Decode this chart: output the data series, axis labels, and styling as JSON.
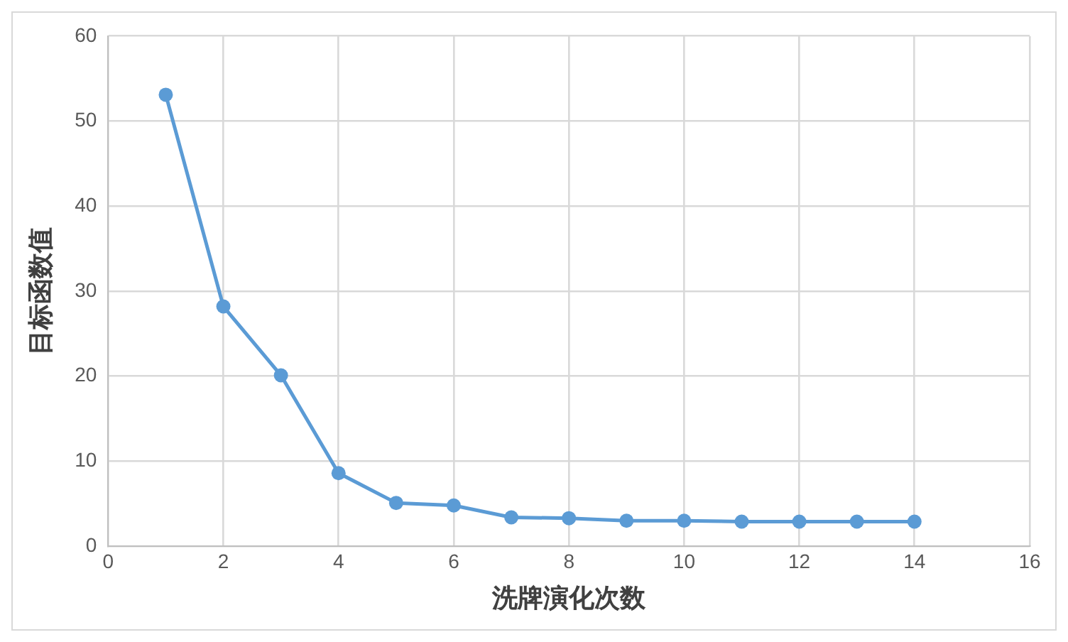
{
  "chart_data": {
    "type": "line",
    "xlabel": "洗牌演化次数",
    "ylabel": "目标函数值",
    "x": [
      1,
      2,
      3,
      4,
      5,
      6,
      7,
      8,
      9,
      10,
      11,
      12,
      13,
      14
    ],
    "series": [
      {
        "color": "#5b9bd5",
        "values": [
          53.1,
          28.2,
          20.1,
          8.6,
          5.1,
          4.8,
          3.4,
          3.3,
          3.0,
          3.0,
          2.9,
          2.9,
          2.9,
          2.9
        ]
      }
    ],
    "xlim": [
      0,
      16
    ],
    "xticks": [
      0,
      2,
      4,
      6,
      8,
      10,
      12,
      14,
      16
    ],
    "ylim": [
      0,
      60
    ],
    "yticks": [
      0,
      10,
      20,
      30,
      40,
      50,
      60
    ],
    "grid": true,
    "marker": "circle",
    "line_style": "solid",
    "legend": false
  }
}
